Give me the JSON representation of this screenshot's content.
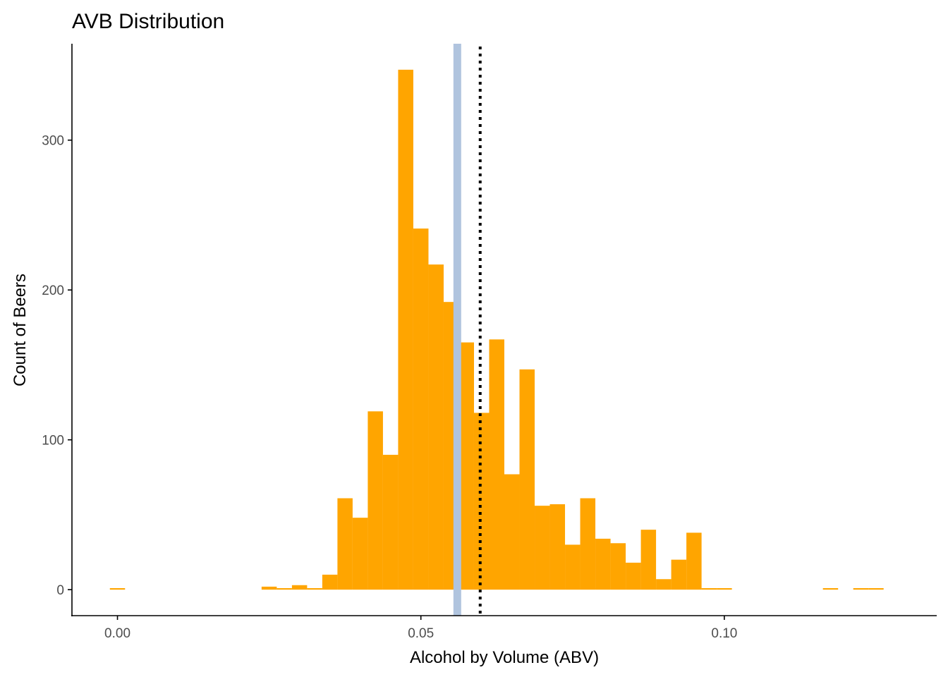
{
  "chart_data": {
    "type": "bar",
    "title": "AVB Distribution",
    "xlabel": "Alcohol by Volume (ABV)",
    "ylabel": "Count of Beers",
    "bin_width": 0.0025,
    "bins": [
      {
        "x": 0.0,
        "count": 1
      },
      {
        "x": 0.025,
        "count": 2
      },
      {
        "x": 0.0275,
        "count": 1
      },
      {
        "x": 0.03,
        "count": 3
      },
      {
        "x": 0.0325,
        "count": 1
      },
      {
        "x": 0.035,
        "count": 10
      },
      {
        "x": 0.0375,
        "count": 61
      },
      {
        "x": 0.04,
        "count": 48
      },
      {
        "x": 0.0425,
        "count": 119
      },
      {
        "x": 0.045,
        "count": 90
      },
      {
        "x": 0.0475,
        "count": 347
      },
      {
        "x": 0.05,
        "count": 241
      },
      {
        "x": 0.0525,
        "count": 217
      },
      {
        "x": 0.055,
        "count": 192
      },
      {
        "x": 0.0575,
        "count": 165
      },
      {
        "x": 0.06,
        "count": 118
      },
      {
        "x": 0.0625,
        "count": 167
      },
      {
        "x": 0.065,
        "count": 77
      },
      {
        "x": 0.0675,
        "count": 147
      },
      {
        "x": 0.07,
        "count": 56
      },
      {
        "x": 0.0725,
        "count": 57
      },
      {
        "x": 0.075,
        "count": 30
      },
      {
        "x": 0.0775,
        "count": 61
      },
      {
        "x": 0.08,
        "count": 34
      },
      {
        "x": 0.0825,
        "count": 31
      },
      {
        "x": 0.085,
        "count": 18
      },
      {
        "x": 0.0875,
        "count": 40
      },
      {
        "x": 0.09,
        "count": 7
      },
      {
        "x": 0.0925,
        "count": 20
      },
      {
        "x": 0.095,
        "count": 38
      },
      {
        "x": 0.0975,
        "count": 1
      },
      {
        "x": 0.1,
        "count": 1
      },
      {
        "x": 0.1175,
        "count": 1
      },
      {
        "x": 0.1225,
        "count": 1
      },
      {
        "x": 0.125,
        "count": 1
      }
    ],
    "median_line": {
      "x": 0.056,
      "color": "#b0c4de",
      "style": "solid"
    },
    "mean_line": {
      "x": 0.05977,
      "color": "#000000",
      "style": "dotted"
    },
    "x_ticks": [
      {
        "value": 0.0,
        "label": "0.00"
      },
      {
        "value": 0.05,
        "label": "0.05"
      },
      {
        "value": 0.1,
        "label": "0.10"
      }
    ],
    "y_ticks": [
      {
        "value": 0,
        "label": "0"
      },
      {
        "value": 100,
        "label": "100"
      },
      {
        "value": 200,
        "label": "200"
      },
      {
        "value": 300,
        "label": "300"
      }
    ],
    "xlim": [
      -0.0075,
      0.135
    ],
    "ylim": [
      -17.35,
      364.35
    ],
    "bar_color": "#ffa500",
    "grid": false,
    "legend": "none"
  }
}
